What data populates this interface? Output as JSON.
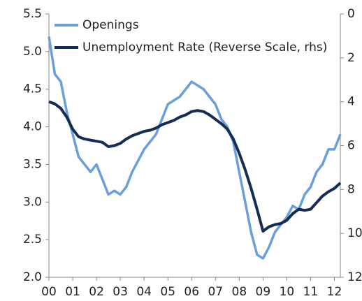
{
  "chart_data": {
    "type": "line",
    "x": [
      0,
      0.25,
      0.5,
      0.75,
      1,
      1.25,
      1.5,
      1.75,
      2,
      2.25,
      2.5,
      2.75,
      3,
      3.25,
      3.5,
      3.75,
      4,
      4.25,
      4.5,
      4.75,
      5,
      5.25,
      5.5,
      5.75,
      6,
      6.25,
      6.5,
      6.75,
      7,
      7.25,
      7.5,
      7.75,
      8,
      8.25,
      8.5,
      8.75,
      9,
      9.25,
      9.5,
      9.75,
      10,
      10.25,
      10.5,
      10.75,
      11,
      11.25,
      11.5,
      11.75,
      12,
      12.25
    ],
    "series": [
      {
        "name": "Openings",
        "color": "#6a9fdc",
        "values": [
          5.2,
          4.7,
          4.6,
          4.2,
          3.9,
          3.6,
          3.5,
          3.4,
          3.5,
          3.3,
          3.1,
          3.15,
          3.1,
          3.2,
          3.4,
          3.55,
          3.7,
          3.8,
          3.9,
          4.1,
          4.3,
          4.35,
          4.4,
          4.5,
          4.6,
          4.55,
          4.5,
          4.4,
          4.3,
          4.1,
          4.0,
          3.8,
          3.4,
          3.0,
          2.6,
          2.3,
          2.25,
          2.4,
          2.6,
          2.7,
          2.8,
          2.95,
          2.9,
          3.1,
          3.2,
          3.4,
          3.5,
          3.7,
          3.7,
          3.9
        ]
      },
      {
        "name": "Unemployment Rate (Reverse Scale, rhs)",
        "color": "#152c55",
        "axis": "y2",
        "values": [
          4.0,
          4.1,
          4.3,
          4.7,
          5.25,
          5.6,
          5.7,
          5.75,
          5.8,
          5.85,
          6.05,
          6.0,
          5.9,
          5.7,
          5.55,
          5.45,
          5.35,
          5.3,
          5.2,
          5.05,
          4.95,
          4.85,
          4.7,
          4.6,
          4.45,
          4.4,
          4.45,
          4.6,
          4.8,
          5.0,
          5.25,
          5.7,
          6.35,
          7.1,
          7.95,
          8.9,
          9.9,
          9.7,
          9.6,
          9.55,
          9.4,
          9.1,
          8.9,
          8.95,
          8.9,
          8.6,
          8.3,
          8.1,
          7.95,
          7.7
        ]
      }
    ],
    "xlim": [
      0,
      12.25
    ],
    "xticks": [
      {
        "value": 0,
        "label": "00"
      },
      {
        "value": 1,
        "label": "01"
      },
      {
        "value": 2,
        "label": "02"
      },
      {
        "value": 3,
        "label": "03"
      },
      {
        "value": 4,
        "label": "04"
      },
      {
        "value": 5,
        "label": "05"
      },
      {
        "value": 6,
        "label": "06"
      },
      {
        "value": 7,
        "label": "07"
      },
      {
        "value": 8,
        "label": "08"
      },
      {
        "value": 9,
        "label": "09"
      },
      {
        "value": 10,
        "label": "10"
      },
      {
        "value": 11,
        "label": "11"
      },
      {
        "value": 12,
        "label": "12"
      }
    ],
    "ylim": [
      2,
      5.5
    ],
    "yticks": [
      {
        "value": 2,
        "label": "2.0"
      },
      {
        "value": 2.5,
        "label": "2.5"
      },
      {
        "value": 3,
        "label": "3.0"
      },
      {
        "value": 3.5,
        "label": "3.5"
      },
      {
        "value": 4,
        "label": "4.0"
      },
      {
        "value": 4.5,
        "label": "4.5"
      },
      {
        "value": 5,
        "label": "5.0"
      },
      {
        "value": 5.5,
        "label": "5.5"
      }
    ],
    "y2lim": [
      12,
      0
    ],
    "y2ticks": [
      0,
      2,
      4,
      6,
      8,
      10,
      12
    ],
    "legend": "upper left"
  }
}
